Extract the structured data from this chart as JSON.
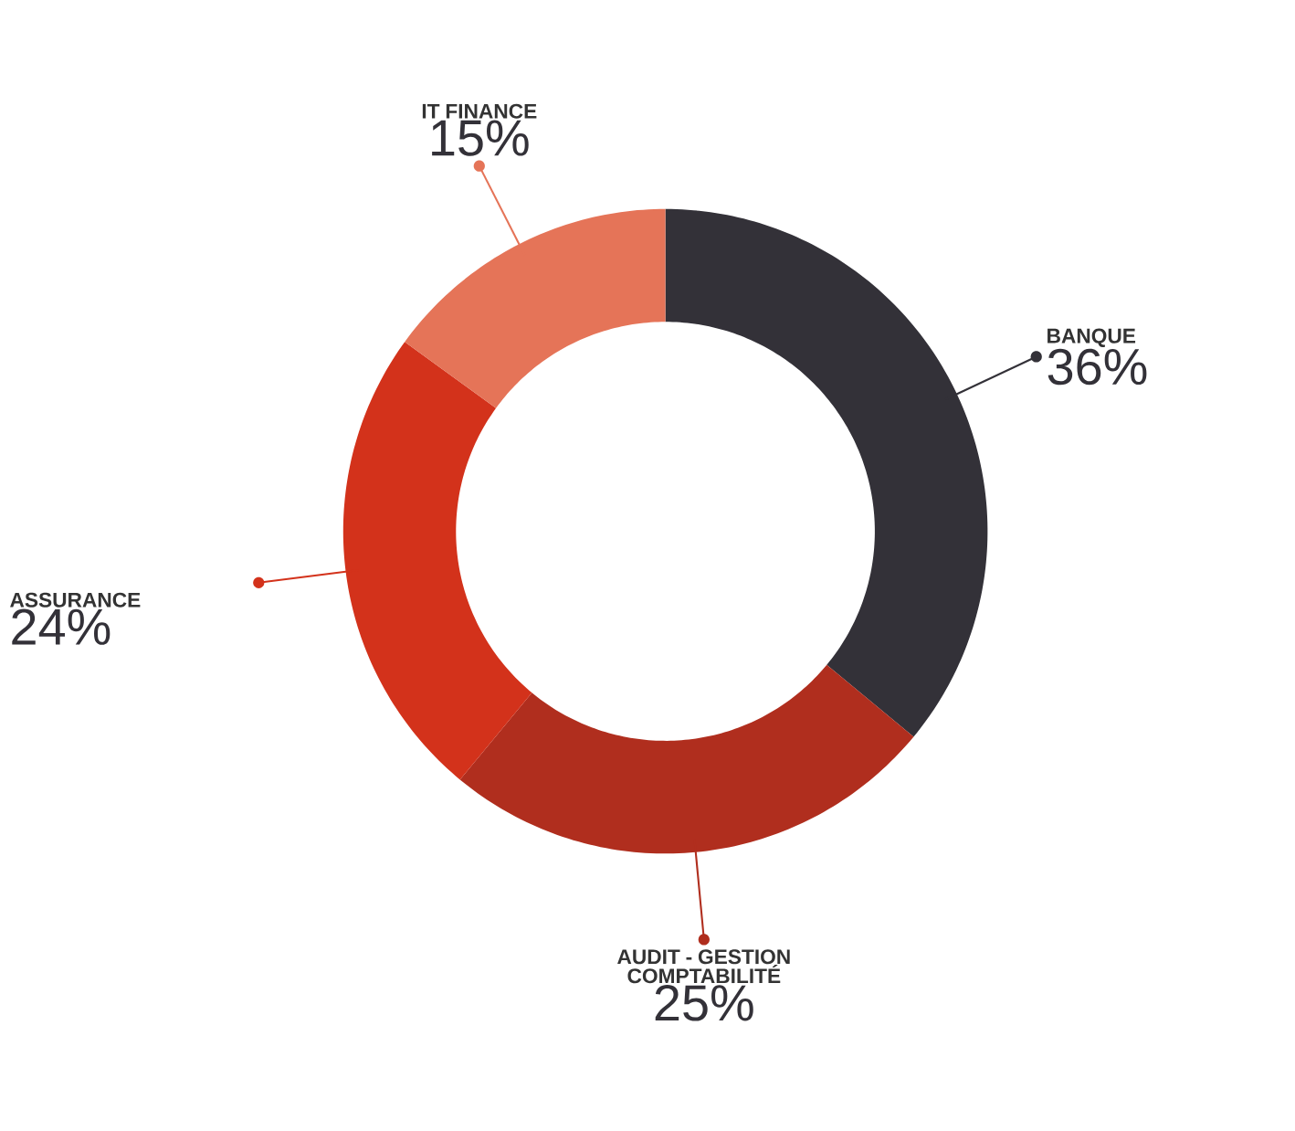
{
  "chart_data": {
    "type": "donut",
    "categories": [
      "BANQUE",
      "AUDIT - GESTION COMPTABILITÉ",
      "ASSURANCE",
      "IT FINANCE"
    ],
    "values": [
      36,
      25,
      24,
      15
    ],
    "value_labels": [
      "36%",
      "25%",
      "24%",
      "15%"
    ],
    "colors": [
      "#333138",
      "#b02e1e",
      "#d3321b",
      "#e57458"
    ]
  }
}
